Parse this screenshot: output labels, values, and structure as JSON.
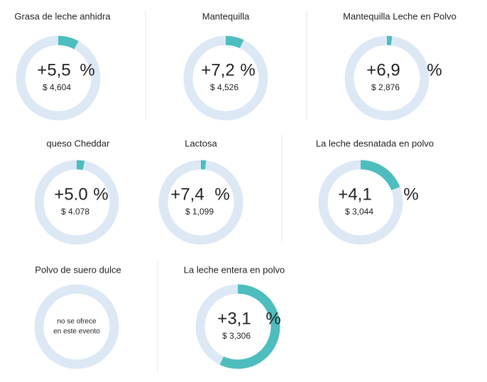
{
  "unit": "%",
  "items": [
    {
      "title": "Grasa de leche anhidra",
      "change": "+5,5",
      "price": "$ 4,604",
      "fill": 8
    },
    {
      "title": "Mantequilla",
      "change": "+7,2",
      "price": "$ 4,526",
      "fill": 7
    },
    {
      "title": "Mantequilla Leche en Polvo",
      "change": "+6,9",
      "price": "$ 2,876",
      "fill": 2
    },
    {
      "title": "queso Cheddar",
      "change": "+5.0",
      "price": "$ 4.078",
      "fill": 3
    },
    {
      "title": "Lactosa",
      "change": "+7,4",
      "price": "$ 1,099",
      "fill": 2
    },
    {
      "title": "La leche desnatada en polvo",
      "change": "+4,1",
      "price": "$ 3,044",
      "fill": 19
    },
    {
      "title": "Polvo de suero dulce",
      "note": [
        "no se ofrece",
        "en este evento"
      ]
    },
    {
      "title": "La leche entera en polvo",
      "change": "+3,1",
      "price": "$ 3,306",
      "fill": 57
    }
  ]
}
